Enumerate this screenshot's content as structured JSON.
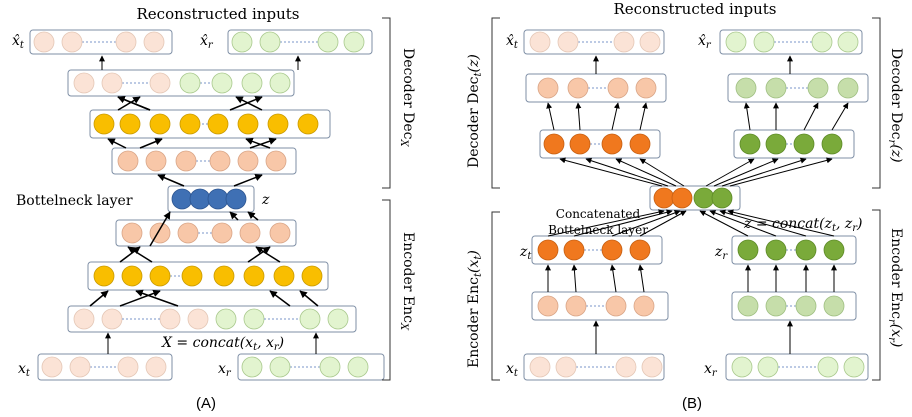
{
  "panel_a": {
    "caption": "(A)",
    "top_title": "Reconstructed inputs",
    "decoder_label": "Decoder Dec",
    "decoder_sub": "X",
    "encoder_label": "Encoder Enc",
    "encoder_sub": "X",
    "bottleneck_label": "Bottelneck layer",
    "z_label": "z",
    "concat_label": "X = concat(x",
    "concat_mid": ", x",
    "concat_end": ")",
    "concat_sub_t": "t",
    "concat_sub_r": "r",
    "in_t": "x",
    "in_t_sub": "t",
    "in_r": "x",
    "in_r_sub": "r",
    "out_t": "x̂",
    "out_t_sub": "t",
    "out_r": "x̂",
    "out_r_sub": "r"
  },
  "panel_b": {
    "caption": "(B)",
    "top_title": "Reconstructed inputs",
    "decoder_t_label": "Decoder Dec",
    "decoder_t_sub": "t",
    "decoder_t_arg": "(z)",
    "decoder_r_label": "Decoder Dec",
    "decoder_r_sub": "r",
    "decoder_r_arg": "(z)",
    "encoder_t_label": "Encoder Enc",
    "encoder_t_sub": "t",
    "encoder_t_arg": "(x",
    "encoder_t_arg_sub": "t",
    "encoder_t_arg_end": ")",
    "encoder_r_label": "Encoder Enc",
    "encoder_r_sub": "r",
    "encoder_r_arg": "(x",
    "encoder_r_arg_sub": "r",
    "encoder_r_arg_end": ")",
    "concat_label_1": "Concatenated",
    "concat_label_2": "Bottelneck layer",
    "z_def": "z = concat(z",
    "z_def_mid": ", z",
    "z_def_end": ")",
    "z_def_sub_t": "t",
    "z_def_sub_r": "r",
    "zt": "z",
    "zt_sub": "t",
    "zr": "z",
    "zr_sub": "r",
    "in_t": "x",
    "in_t_sub": "t",
    "in_r": "x",
    "in_r_sub": "r",
    "out_t": "x̂",
    "out_t_sub": "t",
    "out_r": "x̂",
    "out_r_sub": "r"
  },
  "colors": {
    "light_peach": "#fbe3d6",
    "peach": "#f8c7a8",
    "light_green": "#e2f4cf",
    "sage": "#c6deaa",
    "gold": "#f9be00",
    "blue": "#3f70b4",
    "orange": "#f0781e",
    "green": "#7aaa3a",
    "box_border": "#7f8fa6",
    "dashed": "#7a95c8"
  }
}
